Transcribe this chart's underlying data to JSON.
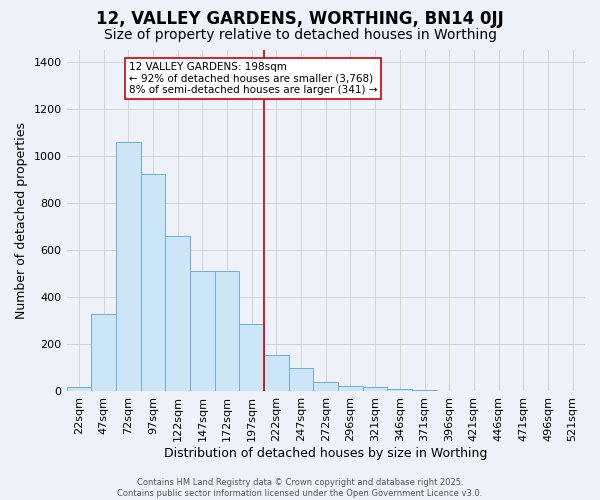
{
  "title1": "12, VALLEY GARDENS, WORTHING, BN14 0JJ",
  "title2": "Size of property relative to detached houses in Worthing",
  "xlabel": "Distribution of detached houses by size in Worthing",
  "ylabel": "Number of detached properties",
  "bar_labels": [
    "22sqm",
    "47sqm",
    "72sqm",
    "97sqm",
    "122sqm",
    "147sqm",
    "172sqm",
    "197sqm",
    "222sqm",
    "247sqm",
    "272sqm",
    "296sqm",
    "321sqm",
    "346sqm",
    "371sqm",
    "396sqm",
    "421sqm",
    "446sqm",
    "471sqm",
    "496sqm",
    "521sqm"
  ],
  "bar_values": [
    20,
    330,
    1060,
    925,
    660,
    510,
    510,
    285,
    155,
    100,
    42,
    25,
    20,
    10,
    8,
    0,
    0,
    0,
    0,
    0,
    0
  ],
  "bar_color": "#cce5f7",
  "bar_edge_color": "#6baed6",
  "property_line_color": "#cc0000",
  "annotation_text": "12 VALLEY GARDENS: 198sqm\n← 92% of detached houses are smaller (3,768)\n8% of semi-detached houses are larger (341) →",
  "annotation_box_color": "#ffffff",
  "annotation_box_edge_color": "#cc0000",
  "footer_text": "Contains HM Land Registry data © Crown copyright and database right 2025.\nContains public sector information licensed under the Open Government Licence v3.0.",
  "ylim": [
    0,
    1450
  ],
  "yticks": [
    0,
    200,
    400,
    600,
    800,
    1000,
    1200,
    1400
  ],
  "grid_color": "#cccccc",
  "bg_color": "#eef2f8",
  "title1_fontsize": 12,
  "title2_fontsize": 10,
  "xlabel_fontsize": 9,
  "ylabel_fontsize": 9,
  "tick_fontsize": 8,
  "annotation_fontsize": 7.5,
  "footer_fontsize": 6
}
